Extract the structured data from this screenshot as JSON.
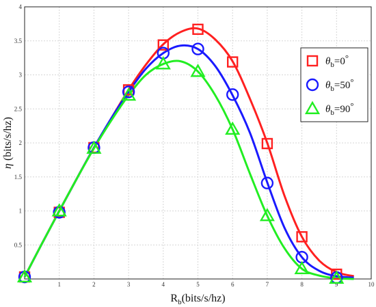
{
  "chart_data": {
    "type": "line",
    "xlabel": {
      "base": "R",
      "sub": "b",
      "rest": "(bits/s/hz)"
    },
    "ylabel": {
      "symbol": "η",
      "rest": " (bits/s/hz)"
    },
    "xlim": [
      0,
      10
    ],
    "ylim": [
      0,
      4
    ],
    "xticks": [
      "1",
      "2",
      "3",
      "4",
      "5",
      "6",
      "7",
      "8",
      "9",
      "10"
    ],
    "yticks": [
      "0.5",
      "1",
      "1.5",
      "2",
      "2.5",
      "3",
      "3.5",
      "4"
    ],
    "grid": true,
    "legend_position": "top-right",
    "series": [
      {
        "name": "θb=0°",
        "legend": {
          "symbol": "θ",
          "sub": "b",
          "rest": "=0",
          "deg": "°"
        },
        "color": "#ff2020",
        "marker": "square",
        "markers": {
          "x": [
            0,
            1,
            2,
            3,
            4,
            5,
            6,
            7,
            8,
            9
          ],
          "y": [
            0.03,
            0.98,
            1.93,
            2.78,
            3.44,
            3.67,
            3.19,
            1.99,
            0.62,
            0.07
          ]
        },
        "curve": {
          "x": [
            0,
            0.5,
            1,
            1.5,
            2,
            2.5,
            3,
            3.5,
            4,
            4.5,
            5,
            5.5,
            6,
            6.5,
            7,
            7.5,
            8,
            8.5,
            9,
            9.5
          ],
          "y": [
            0.03,
            0.52,
            1.0,
            1.47,
            1.93,
            2.36,
            2.78,
            3.15,
            3.45,
            3.63,
            3.68,
            3.52,
            3.2,
            2.65,
            2.0,
            1.22,
            0.62,
            0.27,
            0.1,
            0.04
          ]
        }
      },
      {
        "name": "θb=50°",
        "legend": {
          "symbol": "θ",
          "sub": "b",
          "rest": "=50",
          "deg": "°"
        },
        "color": "#1a1aff",
        "marker": "circle",
        "markers": {
          "x": [
            0,
            1,
            2,
            3,
            4,
            5,
            6,
            7,
            8,
            9
          ],
          "y": [
            0.03,
            0.98,
            1.93,
            2.75,
            3.32,
            3.38,
            2.71,
            1.41,
            0.32,
            0.02
          ]
        },
        "curve": {
          "x": [
            0,
            0.5,
            1,
            1.5,
            2,
            2.5,
            3,
            3.5,
            4,
            4.5,
            5,
            5.5,
            6,
            6.5,
            7,
            7.5,
            8,
            8.5,
            9,
            9.5
          ],
          "y": [
            0.03,
            0.52,
            1.0,
            1.47,
            1.93,
            2.36,
            2.75,
            3.09,
            3.32,
            3.43,
            3.38,
            3.13,
            2.7,
            2.15,
            1.42,
            0.75,
            0.32,
            0.12,
            0.04,
            0.02
          ]
        }
      },
      {
        "name": "θb=90°",
        "legend": {
          "symbol": "θ",
          "sub": "b",
          "rest": "=90",
          "deg": "°"
        },
        "color": "#22ee22",
        "marker": "triangle",
        "markers": {
          "x": [
            0,
            1,
            2,
            3,
            4,
            5,
            6,
            7,
            8,
            9
          ],
          "y": [
            0.03,
            1.0,
            1.92,
            2.7,
            3.16,
            3.05,
            2.2,
            0.93,
            0.15,
            0.01
          ]
        },
        "curve": {
          "x": [
            0,
            0.5,
            1,
            1.5,
            2,
            2.5,
            3,
            3.5,
            4,
            4.5,
            5,
            5.5,
            6,
            6.5,
            7,
            7.5,
            8,
            8.5,
            9,
            9.5
          ],
          "y": [
            0.03,
            0.52,
            1.0,
            1.47,
            1.92,
            2.33,
            2.7,
            3.0,
            3.16,
            3.2,
            3.05,
            2.7,
            2.2,
            1.55,
            0.93,
            0.45,
            0.15,
            0.05,
            0.01,
            0.0
          ]
        }
      }
    ]
  }
}
